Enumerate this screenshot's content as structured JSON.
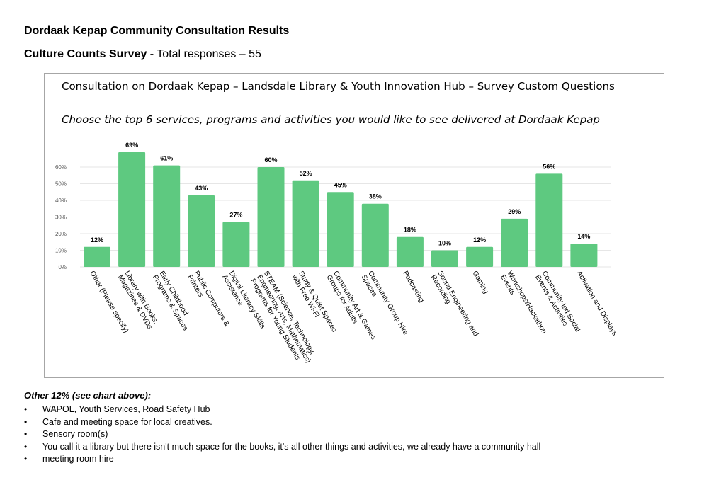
{
  "document": {
    "title": "Dordaak Kepap Community Consultation Results",
    "subtitle_bold": "Culture Counts Survey  -",
    "subtitle_rest": " Total responses – 55"
  },
  "chart_data": {
    "type": "bar",
    "title": "Consultation on Dordaak Kepap – Landsdale Library & Youth Innovation Hub – Survey Custom Questions",
    "subtitle": "Choose the top 6 services, programs and activities you would like to see delivered at Dordaak Kepap",
    "categories": [
      [
        "Other (Please specify)"
      ],
      [
        "Library with Books,",
        "Magazines & DVDs"
      ],
      [
        "Early Childhood",
        "Programs & Spaces"
      ],
      [
        "Public Computers &",
        "Printers"
      ],
      [
        "Digital Literacy Skills",
        "Assistance"
      ],
      [
        "STEAM (Science, Technology,",
        "Engineering, Arts, Mathematics)",
        "Programs for Young Students"
      ],
      [
        "Study & Quiet Spaces",
        "with Free Wi-Fi"
      ],
      [
        "Community Art & Games",
        "Groups for Adults"
      ],
      [
        "Community Group Hire",
        "Spaces"
      ],
      [
        "Podcasting"
      ],
      [
        "Sound Engineering and",
        "Recording"
      ],
      [
        "Gaming"
      ],
      [
        "Workshops/Hackathon",
        "Events"
      ],
      [
        "Community-led Social",
        "Events & Activities"
      ],
      [
        "Activation and Displays"
      ]
    ],
    "values": [
      12,
      69,
      61,
      43,
      27,
      60,
      52,
      45,
      38,
      18,
      10,
      12,
      29,
      56,
      14
    ],
    "data_labels": [
      "12%",
      "69%",
      "61%",
      "43%",
      "27%",
      "60%",
      "52%",
      "45%",
      "38%",
      "18%",
      "10%",
      "12%",
      "29%",
      "56%",
      "14%"
    ],
    "y_ticks": [
      0,
      10,
      20,
      30,
      40,
      50,
      60
    ],
    "y_tick_labels": [
      "0%",
      "10%",
      "20%",
      "30%",
      "40%",
      "50%",
      "60%"
    ],
    "ylim": [
      0,
      69
    ],
    "bar_color": "#5ec980",
    "grid": true,
    "legend": "none",
    "xlabel": "",
    "ylabel": ""
  },
  "other": {
    "heading": "Other 12% (see chart above):",
    "bullet": "•",
    "items": [
      "WAPOL, Youth Services, Road Safety Hub",
      "Cafe and meeting space for local creatives.",
      "Sensory room(s)",
      "You call it a library but there isn't much space for the books, it's all other things and activities, we already have a community hall",
      "meeting room hire"
    ]
  }
}
